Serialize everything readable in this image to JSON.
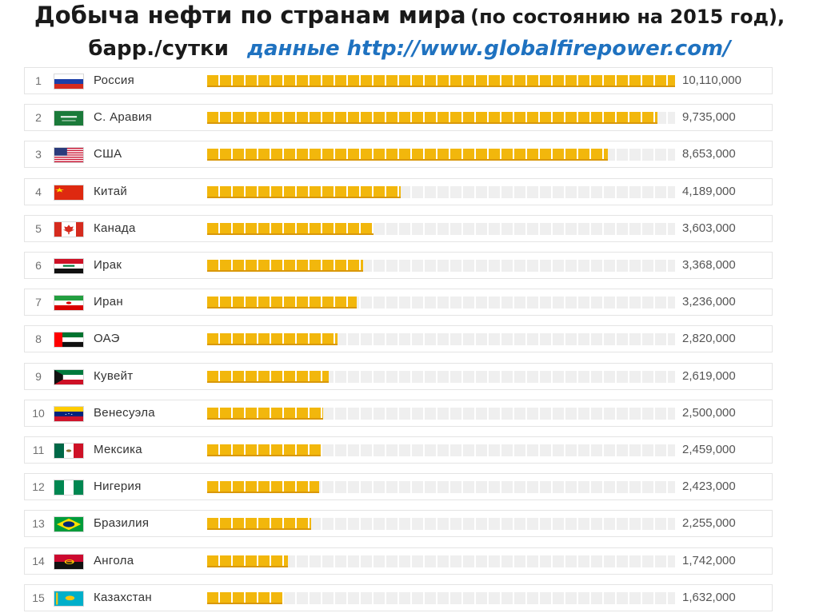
{
  "header": {
    "title_main": "Добыча нефти по странам мира",
    "title_note": "(по состоянию на 2015 год),",
    "unit": "барр./сутки",
    "source": "данные http://www.globalfirepower.com/"
  },
  "colors": {
    "bar_fill": "#f2b70c",
    "bar_empty": "#efefef",
    "source_link": "#1f72c0"
  },
  "chart_data": {
    "type": "bar",
    "orientation": "horizontal",
    "title": "Добыча нефти по странам мира (по состоянию на 2015 год), барр./сутки",
    "xlim": [
      0,
      10110000
    ],
    "ranks": [
      "1",
      "2",
      "3",
      "4",
      "5",
      "6",
      "7",
      "8",
      "9",
      "10",
      "11",
      "12",
      "13",
      "14",
      "15"
    ],
    "categories": [
      "Россия",
      "С. Аравия",
      "США",
      "Китай",
      "Канада",
      "Ирак",
      "Иран",
      "ОАЭ",
      "Кувейт",
      "Венесуэла",
      "Мексика",
      "Нигерия",
      "Бразилия",
      "Ангола",
      "Казахстан"
    ],
    "values": [
      10110000,
      9735000,
      8653000,
      4189000,
      3603000,
      3368000,
      3236000,
      2820000,
      2619000,
      2500000,
      2459000,
      2423000,
      2255000,
      1742000,
      1632000
    ],
    "value_labels": [
      "10,110,000",
      "9,735,000",
      "8,653,000",
      "4,189,000",
      "3,603,000",
      "3,368,000",
      "3,236,000",
      "2,820,000",
      "2,619,000",
      "2,500,000",
      "2,459,000",
      "2,423,000",
      "2,255,000",
      "1,742,000",
      "1,632,000"
    ],
    "flags": [
      "ru-flag-icon",
      "sa-flag-icon",
      "us-flag-icon",
      "cn-flag-icon",
      "ca-flag-icon",
      "iq-flag-icon",
      "ir-flag-icon",
      "ae-flag-icon",
      "kw-flag-icon",
      "ve-flag-icon",
      "mx-flag-icon",
      "ng-flag-icon",
      "br-flag-icon",
      "ao-flag-icon",
      "kz-flag-icon"
    ]
  }
}
